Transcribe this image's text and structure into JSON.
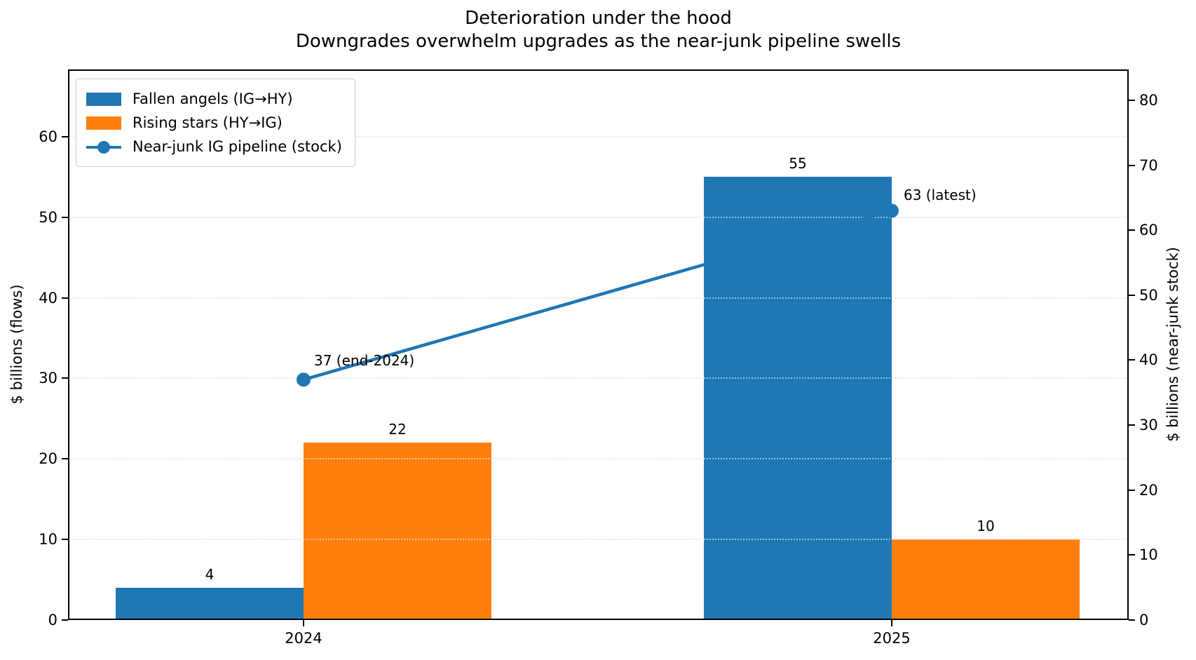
{
  "figure": {
    "background": "#ffffff"
  },
  "title": {
    "line1": "Deterioration under the hood",
    "line2": "Downgrades overwhelm upgrades as the near-junk pipeline swells"
  },
  "chart_data": {
    "type": "bar",
    "subtype": "grouped bars with dual-axis line overlay",
    "categories": [
      "2024",
      "2025"
    ],
    "series": [
      {
        "name": "Fallen angels (IG→HY)",
        "kind": "bar",
        "axis": "left",
        "color": "#1f77b4",
        "values": [
          4,
          55
        ]
      },
      {
        "name": "Rising stars (HY→IG)",
        "kind": "bar",
        "axis": "left",
        "color": "#ff7f0e",
        "values": [
          22,
          10
        ]
      },
      {
        "name": "Near-junk IG pipeline (stock)",
        "kind": "line",
        "axis": "right",
        "color": "#1f77b4",
        "values": [
          37,
          63
        ],
        "point_labels": [
          "37 (end-2024)",
          "63 (latest)"
        ]
      }
    ],
    "bar_value_labels": [
      [
        "4",
        "55"
      ],
      [
        "22",
        "10"
      ]
    ],
    "left_axis": {
      "label": "$ billions (flows)",
      "ticks": [
        0,
        10,
        20,
        30,
        40,
        50,
        60
      ],
      "range": [
        0,
        68.35
      ]
    },
    "right_axis": {
      "label": "$ billions (near-junk stock)",
      "ticks": [
        0,
        10,
        20,
        30,
        40,
        50,
        60,
        70,
        80
      ],
      "range": [
        0,
        84.75
      ]
    },
    "grid": {
      "show": true,
      "at": "left-axis-ticks",
      "style": "dotted",
      "color": "#c8c8c8"
    },
    "legend": {
      "position": "upper-left",
      "entries": [
        "Fallen angels (IG→HY)",
        "Rising stars (HY→IG)",
        "Near-junk IG pipeline (stock)"
      ]
    },
    "colors": {
      "blue": "#1f77b4",
      "orange": "#ff7f0e",
      "text": "#000000",
      "spine": "#000000"
    }
  }
}
